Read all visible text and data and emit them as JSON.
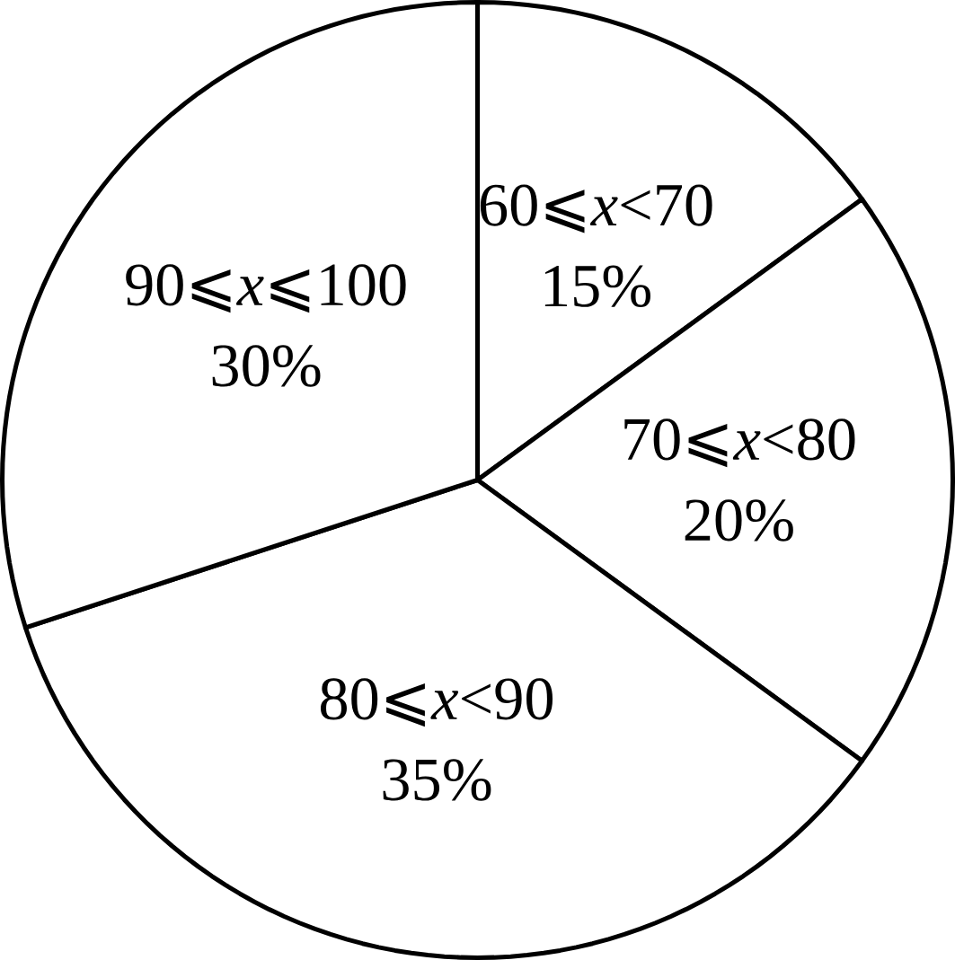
{
  "chart_data": {
    "type": "pie",
    "categories": [
      "60⩽*x*<70",
      "70⩽*x*<80",
      "80⩽*x*<90",
      "90⩽*x*⩽100"
    ],
    "values": [
      15,
      20,
      35,
      30
    ],
    "value_labels": [
      "15%",
      "20%",
      "35%",
      "30%"
    ],
    "colors": [
      "#ffffff",
      "#ffffff",
      "#ffffff",
      "#ffffff"
    ]
  }
}
